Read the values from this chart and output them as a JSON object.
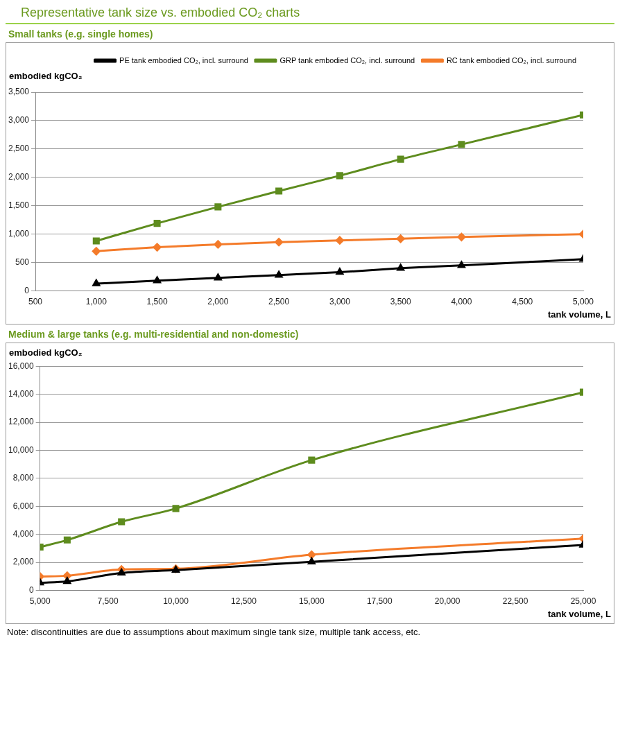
{
  "chart_data": [
    {
      "type": "line",
      "title": "Representative tank size vs. embodied CO₂ charts",
      "subtitle": "Small tanks (e.g. single homes)",
      "ylabel": "embodied kgCO₂",
      "xlabel": "tank volume, L",
      "x": [
        1000,
        1500,
        2000,
        2500,
        3000,
        3500,
        4000,
        4500,
        5000
      ],
      "series": [
        {
          "name": "RC tank embodied CO₂, incl. surround",
          "color": "#f47b2a",
          "marker": "diamond",
          "values": [
            700,
            770,
            820,
            860,
            890,
            920,
            950,
            null,
            1000
          ]
        },
        {
          "name": "GRP tank embodied CO₂, incl. surround",
          "color": "#5e8c1e",
          "marker": "square",
          "values": [
            880,
            1190,
            1480,
            1760,
            2030,
            2320,
            2580,
            null,
            3100
          ]
        },
        {
          "name": "PE tank embodied CO₂, incl. surround",
          "color": "#000000",
          "marker": "triangle",
          "values": [
            130,
            180,
            230,
            280,
            330,
            400,
            450,
            null,
            560
          ]
        }
      ],
      "xlim": [
        500,
        5000
      ],
      "xticks": [
        {
          "value": 500,
          "label": "500"
        },
        {
          "value": 1000,
          "label": "1,000"
        },
        {
          "value": 1500,
          "label": "1,500"
        },
        {
          "value": 2000,
          "label": "2,000"
        },
        {
          "value": 2500,
          "label": "2,500"
        },
        {
          "value": 3000,
          "label": "3,000"
        },
        {
          "value": 3500,
          "label": "3,500"
        },
        {
          "value": 4000,
          "label": "4,000"
        },
        {
          "value": 4500,
          "label": "4,500"
        },
        {
          "value": 5000,
          "label": "5,000"
        }
      ],
      "ylim": [
        0,
        3500
      ],
      "yticks": [
        {
          "value": 0,
          "label": "0"
        },
        {
          "value": 500,
          "label": "500"
        },
        {
          "value": 1000,
          "label": "1,000"
        },
        {
          "value": 1500,
          "label": "1,500"
        },
        {
          "value": 2000,
          "label": "2,000"
        },
        {
          "value": 2500,
          "label": "2,500"
        },
        {
          "value": 3000,
          "label": "3,000"
        },
        {
          "value": 3500,
          "label": "3,500"
        }
      ],
      "grid": "y",
      "legend": "top",
      "line_style": "solid"
    },
    {
      "type": "line",
      "title": "Medium & large tanks (e.g. multi-residential and non-domestic)",
      "ylabel": "embodied kgCO₂",
      "xlabel": "tank volume, L",
      "x": [
        5000,
        6000,
        8000,
        10000,
        15000,
        25000
      ],
      "series": [
        {
          "color": "#f47b2a",
          "marker": "diamond",
          "values": [
            1000,
            1050,
            1500,
            1550,
            2550,
            3700
          ]
        },
        {
          "color": "#5e8c1e",
          "marker": "square",
          "values": [
            3100,
            3600,
            4900,
            5850,
            9300,
            14150
          ]
        },
        {
          "color": "#000000",
          "marker": "triangle",
          "values": [
            550,
            650,
            1250,
            1450,
            2050,
            3250
          ]
        }
      ],
      "xlim": [
        5000,
        25000
      ],
      "xticks": [
        {
          "value": 5000,
          "label": "5,000"
        },
        {
          "value": 7500,
          "label": "7,500"
        },
        {
          "value": 10000,
          "label": "10,000"
        },
        {
          "value": 12500,
          "label": "12,500"
        },
        {
          "value": 15000,
          "label": "15,000"
        },
        {
          "value": 17500,
          "label": "17,500"
        },
        {
          "value": 20000,
          "label": "20,000"
        },
        {
          "value": 22500,
          "label": "22,500"
        },
        {
          "value": 25000,
          "label": "25,000"
        }
      ],
      "ylim": [
        0,
        16000
      ],
      "yticks": [
        {
          "value": 0,
          "label": "0"
        },
        {
          "value": 2000,
          "label": "2,000"
        },
        {
          "value": 4000,
          "label": "4,000"
        },
        {
          "value": 6000,
          "label": "6,000"
        },
        {
          "value": 8000,
          "label": "8,000"
        },
        {
          "value": 10000,
          "label": "10,000"
        },
        {
          "value": 12000,
          "label": "12,000"
        },
        {
          "value": 14000,
          "label": "14,000"
        },
        {
          "value": 16000,
          "label": "16,000"
        }
      ],
      "grid": "y",
      "legend": false,
      "line_style": "solid",
      "annotations": [
        "Note: discontinuities are due to assumptions about maximum single tank size, multiple tank access, etc."
      ]
    }
  ]
}
